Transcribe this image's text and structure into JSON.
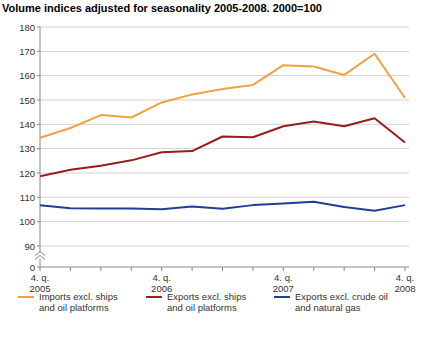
{
  "chart_data": {
    "type": "line",
    "title": "Volume indices adjusted for seasonality 2005-2008. 2000=100",
    "categories": [
      "4. q.\n2005",
      null,
      null,
      null,
      "4. q.\n2006",
      null,
      null,
      null,
      "4. q.\n2007",
      null,
      null,
      null,
      "4. q.\n2008"
    ],
    "series": [
      {
        "name": "Imports excl. ships\nand oil platforms",
        "color": "#f5a040",
        "values": [
          134.5,
          138.5,
          143.8,
          142.8,
          149,
          152.3,
          154.5,
          156.2,
          164.3,
          163.8,
          160.3,
          169,
          150.8
        ]
      },
      {
        "name": "Exports excl. ships\nand oil platforms",
        "color": "#9b1c1c",
        "values": [
          118.7,
          121.3,
          123,
          125.2,
          128.5,
          129,
          135,
          134.7,
          139.2,
          141.2,
          139.2,
          142.5,
          132.5
        ]
      },
      {
        "name": "Exports excl. crude oil\nand natural gas",
        "color": "#1f3f96",
        "values": [
          106.7,
          105.5,
          105.4,
          105.4,
          105.1,
          106.2,
          105.3,
          106.8,
          107.5,
          108.2,
          106,
          104.5,
          106.8
        ]
      }
    ],
    "ylim": [
      0,
      180
    ],
    "yticks": [
      0,
      90,
      100,
      110,
      120,
      130,
      140,
      150,
      160,
      170,
      180
    ],
    "grid": true,
    "legend": "bottom"
  }
}
